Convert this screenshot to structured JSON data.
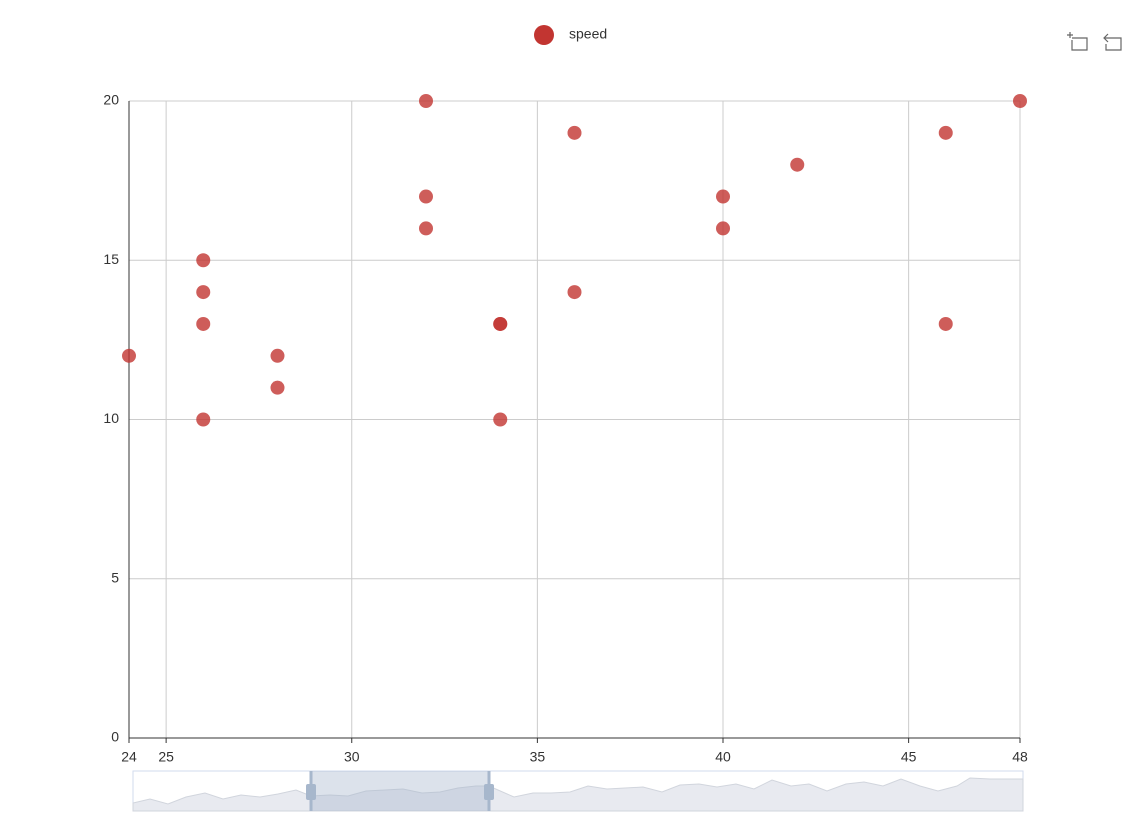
{
  "chart_data": {
    "type": "scatter",
    "series": [
      {
        "name": "speed",
        "color": "#c23531",
        "x": [
          24,
          26,
          26,
          26,
          26,
          28,
          28,
          32,
          32,
          32,
          34,
          34,
          34,
          36,
          36,
          40,
          40,
          42,
          46,
          46,
          48
        ],
        "values": [
          12,
          15,
          14,
          13,
          10,
          12,
          11,
          20,
          17,
          16,
          13,
          13,
          10,
          19,
          14,
          17,
          16,
          18,
          19,
          13,
          20
        ]
      }
    ],
    "xlim": [
      24,
      48
    ],
    "xticks": [
      24,
      25,
      30,
      35,
      40,
      45,
      48
    ],
    "ylim": [
      0,
      20
    ],
    "yticks": [
      0,
      5,
      10,
      15,
      20
    ],
    "grid": true
  }
}
